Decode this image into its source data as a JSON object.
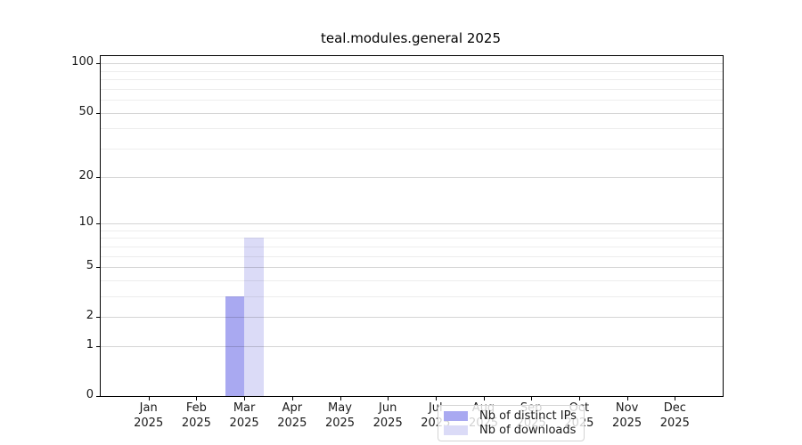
{
  "title": "teal.modules.general 2025",
  "chart_data": {
    "type": "bar",
    "title": "teal.modules.general 2025",
    "categories": [
      "Jan 2025",
      "Feb 2025",
      "Mar 2025",
      "Apr 2025",
      "May 2025",
      "Jun 2025",
      "Jul 2025",
      "Aug 2025",
      "Sep 2025",
      "Oct 2025",
      "Nov 2025",
      "Dec 2025"
    ],
    "series": [
      {
        "name": "Nb of distinct IPs",
        "color": "#a9a9f1",
        "values": [
          0,
          0,
          3,
          0,
          0,
          0,
          0,
          0,
          0,
          0,
          0,
          0
        ]
      },
      {
        "name": "Nb of downloads",
        "color": "#dbdbf7",
        "values": [
          0,
          0,
          8,
          0,
          0,
          0,
          0,
          0,
          0,
          0,
          0,
          0
        ]
      }
    ],
    "xlabel": "",
    "ylabel": "",
    "y_axis": {
      "scale": "log1p",
      "major_ticks": [
        0,
        1,
        2,
        5,
        10,
        20,
        50,
        100
      ],
      "minor_gridlines": [
        3,
        4,
        6,
        7,
        8,
        9,
        30,
        40,
        60,
        70,
        80,
        90
      ],
      "ylim": [
        0,
        111
      ]
    },
    "x_axis": {
      "slots": 13
    },
    "legend": {
      "position": "inside-bottom-center",
      "entries": [
        "Nb of distinct IPs",
        "Nb of downloads"
      ]
    },
    "grid": "on",
    "colors": {
      "bar_distinct_ips": "#a9a9f1",
      "bar_downloads": "#dbdbf7",
      "major_grid": "#d5d5d5",
      "minor_grid": "#ececec",
      "axis": "#000000",
      "legend_border": "#d4d4d4",
      "text": "#1a1a1a"
    }
  }
}
